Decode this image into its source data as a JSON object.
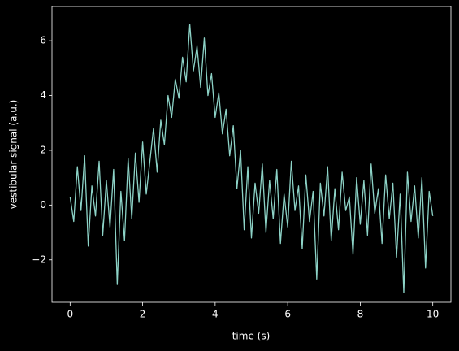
{
  "chart_data": {
    "type": "line",
    "xlabel": "time (s)",
    "ylabel": "vestibular signal (a.u.)",
    "x": [
      0,
      0.1,
      0.2,
      0.3,
      0.4,
      0.5,
      0.6,
      0.7,
      0.8,
      0.9,
      1,
      1.1,
      1.2,
      1.3,
      1.4,
      1.5,
      1.6,
      1.7,
      1.8,
      1.9,
      2,
      2.1,
      2.2,
      2.3,
      2.4,
      2.5,
      2.6,
      2.7,
      2.8,
      2.9,
      3,
      3.1,
      3.2,
      3.3,
      3.4,
      3.5,
      3.6,
      3.7,
      3.8,
      3.9,
      4,
      4.1,
      4.2,
      4.3,
      4.4,
      4.5,
      4.6,
      4.7,
      4.8,
      4.9,
      5,
      5.1,
      5.2,
      5.3,
      5.4,
      5.5,
      5.6,
      5.7,
      5.8,
      5.9,
      6,
      6.1,
      6.2,
      6.3,
      6.4,
      6.5,
      6.6,
      6.7,
      6.8,
      6.9,
      7,
      7.1,
      7.2,
      7.3,
      7.4,
      7.5,
      7.6,
      7.7,
      7.8,
      7.9,
      8,
      8.1,
      8.2,
      8.3,
      8.4,
      8.5,
      8.6,
      8.7,
      8.8,
      8.9,
      9,
      9.1,
      9.2,
      9.3,
      9.4,
      9.5,
      9.6,
      9.7,
      9.8,
      9.9,
      10
    ],
    "series": [
      {
        "color": "#8dd3c7",
        "values": [
          0.3,
          -0.6,
          1.4,
          -0.2,
          1.8,
          -1.5,
          0.7,
          -0.4,
          1.6,
          -1.1,
          0.9,
          -0.8,
          1.3,
          -2.9,
          0.5,
          -1.3,
          1.7,
          -0.5,
          1.9,
          0.1,
          2.3,
          0.4,
          1.6,
          2.8,
          1.2,
          3.1,
          2.2,
          4.0,
          3.2,
          4.6,
          3.9,
          5.4,
          4.5,
          6.6,
          4.9,
          5.8,
          4.3,
          6.1,
          4.0,
          4.8,
          3.2,
          4.1,
          2.6,
          3.5,
          1.8,
          2.9,
          0.6,
          2.0,
          -0.9,
          1.4,
          -1.2,
          0.8,
          -0.3,
          1.5,
          -1.0,
          0.9,
          -0.5,
          1.3,
          -1.4,
          0.4,
          -0.8,
          1.6,
          -0.2,
          0.7,
          -1.6,
          1.1,
          -0.6,
          0.5,
          -2.7,
          0.8,
          -0.4,
          1.4,
          -1.3,
          0.6,
          -0.9,
          1.2,
          -0.2,
          0.3,
          -1.8,
          1.0,
          -0.7,
          0.9,
          -1.1,
          1.5,
          -0.3,
          0.6,
          -1.4,
          1.1,
          -0.5,
          0.8,
          -1.9,
          0.4,
          -3.2,
          1.2,
          -0.6,
          0.7,
          -1.2,
          1.0,
          -2.3,
          0.5,
          -0.4
        ]
      }
    ],
    "xlim": [
      -0.5,
      10.5
    ],
    "xticks": [
      0,
      2,
      4,
      6,
      8,
      10
    ],
    "ylim": [
      -3.55,
      7.25
    ],
    "yticks": [
      {
        "value": -2,
        "label": "−2"
      },
      0,
      2,
      4,
      6
    ]
  }
}
